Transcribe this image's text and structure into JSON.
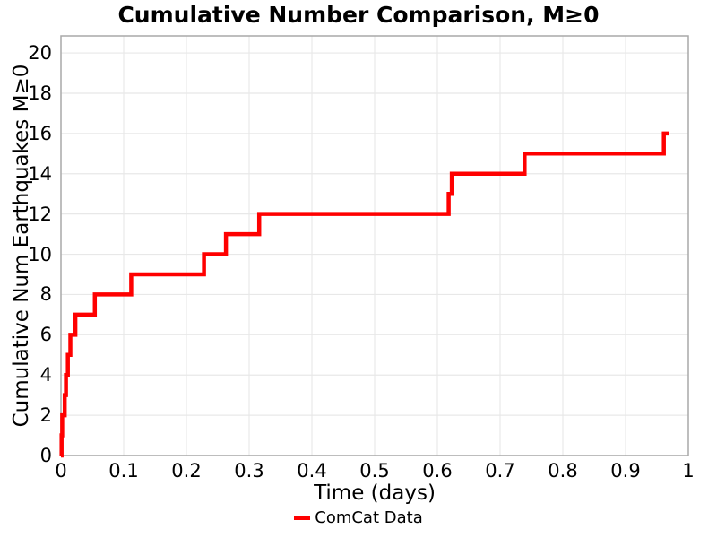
{
  "title": "Cumulative Number Comparison, M≥0",
  "legend": {
    "label": "ComCat Data"
  },
  "colors": {
    "line": "#ff0000",
    "grid": "#e8e8e8",
    "spine": "#a9a9a9",
    "text": "#000000",
    "background": "#ffffff"
  },
  "chart_data": {
    "type": "line",
    "subtype": "step-after",
    "title": "Cumulative Number Comparison, M≥0",
    "xlabel": "Time (days)",
    "ylabel": "Cumulative Num Earthquakes M≥0",
    "xlim": [
      0,
      1.0
    ],
    "ylim": [
      0,
      20.85
    ],
    "grid": true,
    "legend_position": "bottom-center",
    "x_tick_values": [
      0,
      0.1,
      0.2,
      0.3,
      0.4,
      0.5,
      0.6,
      0.7,
      0.8,
      0.9,
      1
    ],
    "x_tick_labels": [
      "0",
      "0.1",
      "0.2",
      "0.3",
      "0.4",
      "0.5",
      "0.6",
      "0.7",
      "0.8",
      "0.9",
      "1"
    ],
    "y_tick_values": [
      0,
      2,
      4,
      6,
      8,
      10,
      12,
      14,
      16,
      18,
      20
    ],
    "y_tick_labels": [
      "0",
      "2",
      "4",
      "6",
      "8",
      "10",
      "12",
      "14",
      "16",
      "18",
      "20"
    ],
    "series": [
      {
        "name": "ComCat Data",
        "color": "#ff0000",
        "line_width": 4.5,
        "points": [
          [
            0,
            0
          ],
          [
            0.001,
            1
          ],
          [
            0.002,
            2
          ],
          [
            0.006,
            3
          ],
          [
            0.008,
            4
          ],
          [
            0.011,
            5
          ],
          [
            0.015,
            6
          ],
          [
            0.023,
            7
          ],
          [
            0.054,
            8
          ],
          [
            0.112,
            9
          ],
          [
            0.228,
            10
          ],
          [
            0.263,
            11
          ],
          [
            0.316,
            12
          ],
          [
            0.618,
            13
          ],
          [
            0.623,
            14
          ],
          [
            0.739,
            15
          ],
          [
            0.961,
            16
          ]
        ],
        "end_x": 0.97
      }
    ]
  }
}
